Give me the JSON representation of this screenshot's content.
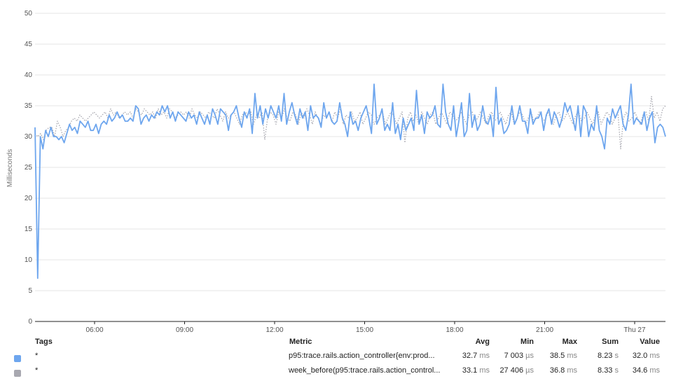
{
  "chart_data": {
    "type": "line",
    "ylabel": "Milliseconds",
    "ylim": [
      0,
      50
    ],
    "yticks": [
      "0",
      "5",
      "10",
      "15",
      "20",
      "25",
      "30",
      "35",
      "40",
      "45",
      "50"
    ],
    "xticks": [
      "06:00",
      "09:00",
      "12:00",
      "15:00",
      "18:00",
      "21:00",
      "Thu 27"
    ],
    "grid": true,
    "series": [
      {
        "name": "p95:trace.rails.action_controller{env:prod...",
        "color": "#6ea6ee",
        "style": "solid",
        "values": [
          31.5,
          7,
          30,
          28,
          31,
          30,
          31.5,
          30,
          30,
          29.5,
          30,
          29,
          30.5,
          32,
          31,
          31.5,
          30.5,
          32.5,
          32,
          31.5,
          32.5,
          31,
          31,
          32,
          30.5,
          32,
          32.5,
          32,
          33.5,
          32.5,
          33,
          34,
          33,
          33.5,
          32.5,
          32.5,
          33,
          32.5,
          35,
          34.5,
          32,
          33,
          33.5,
          32.5,
          33.5,
          33,
          34,
          33.5,
          35,
          34,
          35,
          33,
          34,
          32.5,
          34,
          33.5,
          33,
          32.5,
          34,
          33,
          33.5,
          32,
          34,
          33,
          32,
          33.5,
          32,
          34.5,
          33.5,
          32,
          34.5,
          34,
          33.5,
          31,
          33.5,
          34,
          35,
          33,
          31.5,
          34,
          33,
          34.5,
          30.5,
          37,
          33,
          35,
          32,
          34.5,
          33,
          35,
          34,
          33,
          35,
          32.5,
          37,
          32,
          34,
          35.5,
          33.5,
          32,
          34.5,
          33,
          34,
          31,
          35,
          33,
          33.5,
          33,
          31.5,
          35.5,
          33,
          34,
          32.5,
          32,
          32.5,
          35.5,
          33,
          32,
          30,
          34,
          32,
          32.5,
          31,
          33,
          34,
          35,
          33,
          30.5,
          38.5,
          32,
          33,
          34.5,
          31,
          32,
          31,
          35.5,
          30.5,
          32,
          29.5,
          33,
          31,
          32,
          33,
          31,
          37.5,
          32,
          33.5,
          30.5,
          34,
          33,
          33.5,
          35,
          32,
          31.5,
          38.5,
          34,
          32,
          31,
          35,
          30,
          32.5,
          35.5,
          30,
          31,
          37,
          31.5,
          33.5,
          31,
          32,
          35,
          32.5,
          32,
          33.5,
          30,
          38,
          32,
          33,
          30.5,
          31,
          32,
          35,
          32,
          33,
          35,
          32.5,
          32.5,
          30.5,
          34.5,
          32,
          33,
          33,
          34,
          31,
          33.5,
          34.5,
          32,
          34,
          33,
          31.5,
          33,
          35.5,
          34,
          35,
          33,
          31,
          35,
          30,
          35,
          34,
          30,
          32,
          31,
          35,
          31,
          30,
          28,
          33,
          32,
          34.5,
          33,
          34,
          35,
          32,
          31,
          33.5,
          38.5,
          32,
          33,
          32.5,
          32,
          34,
          31,
          33,
          34,
          29,
          31.5,
          32,
          31.5,
          30
        ]
      },
      {
        "name": "week_before(p95:trace.rails.action_control...",
        "color": "#a8a8b0",
        "style": "dotted",
        "values": [
          30.5,
          30,
          30.5,
          29.5,
          31,
          31.5,
          31.5,
          30,
          32.5,
          31.5,
          30,
          31,
          31.5,
          32.5,
          33,
          32.5,
          33.5,
          33,
          32.5,
          33,
          33.5,
          34,
          33.5,
          33,
          33.5,
          34,
          33,
          34.5,
          33.5,
          34,
          33,
          33.5,
          34,
          33.5,
          34,
          33,
          34.5,
          34,
          33.5,
          34.5,
          34,
          33.5,
          34,
          33,
          34.5,
          33.5,
          34,
          33,
          34.5,
          34,
          33,
          33.5,
          34,
          33.5,
          34,
          33,
          34.5,
          33.5,
          33,
          34,
          33.5,
          33,
          34,
          33.5,
          33,
          34.5,
          33.5,
          32.5,
          34,
          33,
          33.5,
          34,
          33,
          32,
          33.5,
          34,
          33.5,
          34,
          32,
          33.5,
          33,
          34,
          29.5,
          33,
          34,
          33.5,
          32,
          34,
          33,
          34.5,
          33,
          32.5,
          34,
          33.5,
          32,
          34,
          33,
          34.5,
          33.5,
          32,
          34,
          33,
          32,
          33.5,
          33,
          34,
          32.5,
          34,
          33,
          34.5,
          32,
          33.5,
          33,
          34,
          32.5,
          33,
          34,
          32,
          33,
          34,
          33.5,
          32,
          33,
          33.5,
          34,
          32,
          33,
          34,
          33.5,
          32,
          33,
          34,
          29,
          33,
          34,
          32.5,
          33.5,
          32,
          34,
          33,
          32,
          33.5,
          34,
          32,
          33,
          34,
          33,
          32,
          34,
          33.5,
          32.5,
          33,
          34,
          33,
          32,
          33.5,
          34,
          32.5,
          33,
          34,
          33,
          32,
          33.5,
          34,
          32.5,
          33,
          34,
          33,
          32,
          33.5,
          34,
          32,
          33,
          34,
          33.5,
          32,
          33,
          34,
          32.5,
          33,
          34,
          33,
          32.5,
          34,
          33,
          32,
          33.5,
          34,
          32.5,
          33,
          34,
          33,
          32,
          33.5,
          34,
          32.5,
          33,
          34,
          33,
          32,
          33.5,
          34,
          32,
          33,
          34,
          33.5,
          32,
          33,
          34,
          28,
          33,
          34,
          32.5,
          33,
          34,
          33,
          32,
          33.5,
          34,
          32.5,
          36.5,
          33,
          34,
          32.5,
          34.5,
          35
        ]
      }
    ]
  },
  "legend": {
    "headers": {
      "tags": "Tags",
      "metric": "Metric",
      "avg": "Avg",
      "min": "Min",
      "max": "Max",
      "sum": "Sum",
      "value": "Value"
    },
    "rows": [
      {
        "color": "#6ea6ee",
        "tag": "*",
        "metric": "p95:trace.rails.action_controller{env:prod...",
        "avg": "32.7",
        "avg_unit": "ms",
        "min": "7 003",
        "min_unit": "µs",
        "max": "38.5",
        "max_unit": "ms",
        "sum": "8.23",
        "sum_unit": "s",
        "value": "32.0",
        "value_unit": "ms"
      },
      {
        "color": "#a8a8b0",
        "tag": "*",
        "metric": "week_before(p95:trace.rails.action_control...",
        "avg": "33.1",
        "avg_unit": "ms",
        "min": "27 406",
        "min_unit": "µs",
        "max": "36.8",
        "max_unit": "ms",
        "sum": "8.33",
        "sum_unit": "s",
        "value": "34.6",
        "value_unit": "ms"
      }
    ]
  }
}
